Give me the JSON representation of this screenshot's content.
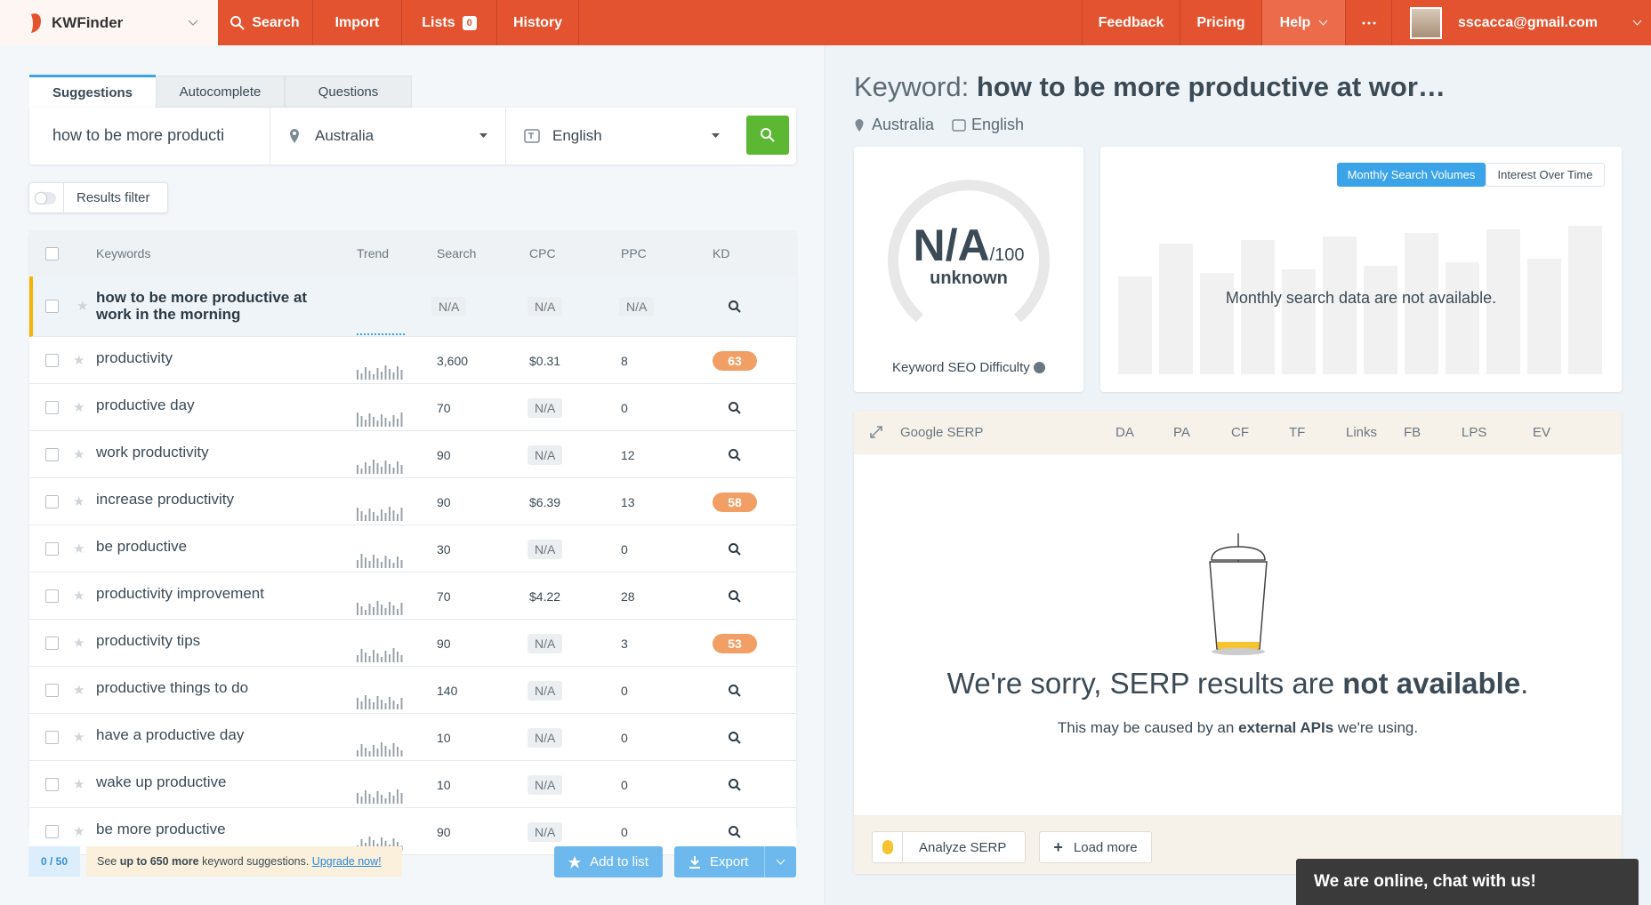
{
  "header": {
    "brand": "KWFinder",
    "nav": [
      "Search",
      "Import",
      "Lists",
      "History"
    ],
    "lists_count": "0",
    "right_nav": [
      "Feedback",
      "Pricing",
      "Help"
    ],
    "user": "sscacca@gmail.com"
  },
  "left": {
    "tabs": [
      "Suggestions",
      "Autocomplete",
      "Questions"
    ],
    "search": {
      "query": "how to be more producti",
      "location": "Australia",
      "language": "English"
    },
    "filter": "Results filter",
    "table": {
      "columns": [
        "Keywords",
        "Trend",
        "Search",
        "CPC",
        "PPC",
        "KD"
      ],
      "rows": [
        [
          "how to be more productive at work in the morning",
          "N/A",
          "N/A",
          "N/A",
          null
        ],
        [
          "productivity",
          "3,600",
          "$0.31",
          "8",
          63
        ],
        [
          "productive day",
          "70",
          "N/A",
          "0",
          null
        ],
        [
          "work productivity",
          "90",
          "N/A",
          "12",
          null
        ],
        [
          "increase productivity",
          "90",
          "$6.39",
          "13",
          58
        ],
        [
          "be productive",
          "30",
          "N/A",
          "0",
          null
        ],
        [
          "productivity improvement",
          "70",
          "$4.22",
          "28",
          null
        ],
        [
          "productivity tips",
          "90",
          "N/A",
          "3",
          53
        ],
        [
          "productive things to do",
          "140",
          "N/A",
          "0",
          null
        ],
        [
          "have a productive day",
          "10",
          "N/A",
          "0",
          null
        ],
        [
          "wake up productive",
          "10",
          "N/A",
          "0",
          null
        ],
        [
          "be more productive",
          "90",
          "N/A",
          "0",
          null
        ]
      ]
    },
    "footer": {
      "count": "0 / 50",
      "upsell": [
        "See ",
        "up to 650 more",
        " keyword suggestions. "
      ],
      "upgrade": "Upgrade now!",
      "add": "Add to list",
      "export": "Export"
    }
  },
  "right": {
    "label": "Keyword: ",
    "keyword": "how to be more productive at wor…",
    "location": "Australia",
    "language": "English",
    "kd": {
      "value": "N/A",
      "max": "/100",
      "status": "unknown",
      "caption": "Keyword SEO Difficulty"
    },
    "chart": {
      "tabs": [
        "Monthly Search Volumes",
        "Interest Over Time"
      ],
      "message": "Monthly search data are not available."
    },
    "serp": {
      "title": "Google SERP",
      "columns": [
        "DA",
        "PA",
        "CF",
        "TF",
        "Links",
        "FB",
        "LPS",
        "EV"
      ],
      "sorry": [
        "We're sorry, SERP results are ",
        "not available",
        "."
      ],
      "cause": [
        "This may be caused by an ",
        "external APIs",
        " we're using."
      ],
      "analyze": "Analyze SERP",
      "load": "Load more"
    },
    "chat": "We are online, chat with us!"
  }
}
